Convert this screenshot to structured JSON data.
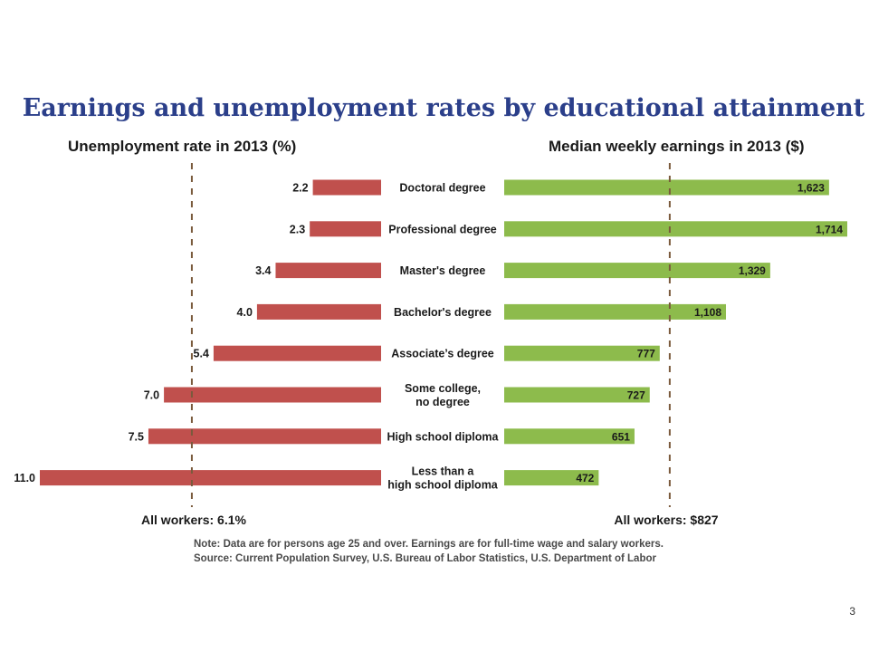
{
  "title": "Earnings and unemployment rates by educational attainment",
  "colors": {
    "title": "#2b3f8a",
    "unemployment_bar": "#c0504d",
    "earnings_bar": "#8dbb4c",
    "reference_line": "#7a5a3c"
  },
  "chart_data": [
    {
      "type": "bar",
      "orientation": "horizontal",
      "direction": "right-to-left",
      "title": "Unemployment rate in 2013 (%)",
      "categories": [
        "Doctoral degree",
        "Professional degree",
        "Master's degree",
        "Bachelor's degree",
        "Associate’s degree",
        "Some college,\nno degree",
        "High school diploma",
        "Less than a\nhigh school diploma"
      ],
      "values": [
        2.2,
        2.3,
        3.4,
        4.0,
        5.4,
        7.0,
        7.5,
        11.0
      ],
      "value_labels": [
        "2.2",
        "2.3",
        "3.4",
        "4.0",
        "5.4",
        "7.0",
        "7.5",
        "11.0"
      ],
      "xlim": [
        0,
        11.6
      ],
      "reference_line": {
        "value": 6.1,
        "label": "All workers: 6.1%"
      },
      "grid": false
    },
    {
      "type": "bar",
      "orientation": "horizontal",
      "direction": "left-to-right",
      "title": "Median weekly earnings in 2013 ($)",
      "categories": [
        "Doctoral degree",
        "Professional degree",
        "Master's degree",
        "Bachelor's degree",
        "Associate’s degree",
        "Some college,\nno degree",
        "High school diploma",
        "Less than a\nhigh school diploma"
      ],
      "values": [
        1623,
        1714,
        1329,
        1108,
        777,
        727,
        651,
        472
      ],
      "value_labels": [
        "1,623",
        "1,714",
        "1,329",
        "1,108",
        "777",
        "727",
        "651",
        "472"
      ],
      "xlim": [
        0,
        1714
      ],
      "reference_line": {
        "value": 827,
        "label": "All workers: $827"
      },
      "grid": false
    }
  ],
  "footnote": {
    "note": "Note: Data are for persons age 25 and over. Earnings are for full-time wage and salary workers.",
    "source": "Source: Current Population Survey, U.S. Bureau of Labor Statistics, U.S. Department of Labor"
  },
  "page_number": "3"
}
